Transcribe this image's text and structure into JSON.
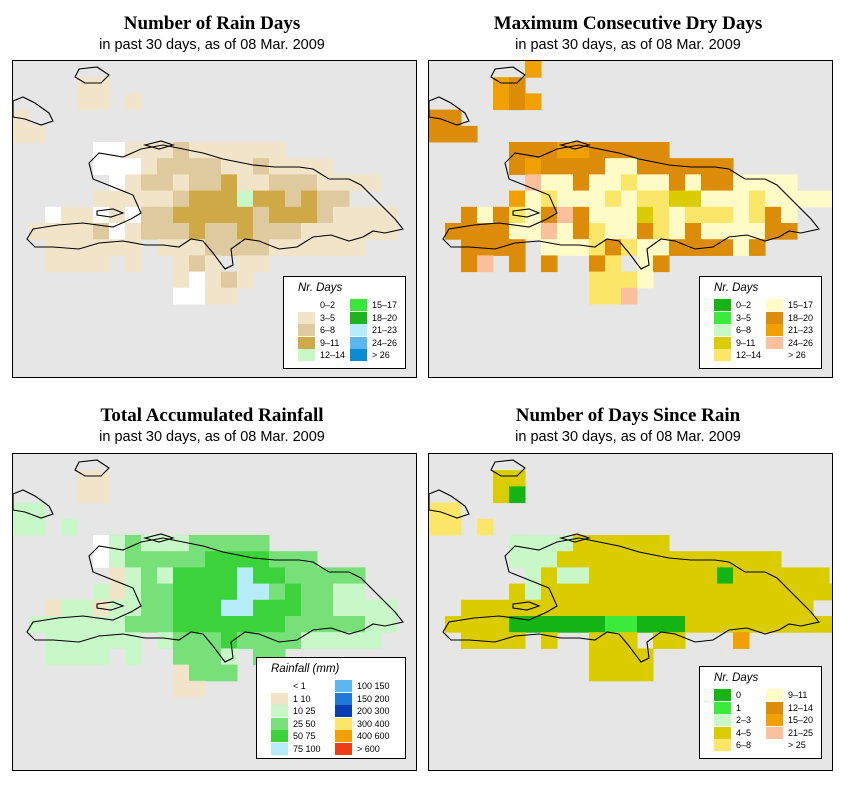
{
  "colors": {
    "background": "#e6e6e6",
    "coastline": "#000000"
  },
  "panels": [
    {
      "title": "Number of Rain Days",
      "subtitle": "in past 30 days, as of  08 Mar. 2009",
      "legend": {
        "title": "Nr. Days",
        "items": [
          {
            "label": "0–2",
            "color": "#ffffff"
          },
          {
            "label": "3–5",
            "color": "#f2e4c8"
          },
          {
            "label": "6–8",
            "color": "#deca9e"
          },
          {
            "label": "9–11",
            "color": "#cfa946"
          },
          {
            "label": "12–14",
            "color": "#c8f7c8"
          },
          {
            "label": "15–17",
            "color": "#38e838"
          },
          {
            "label": "18–20",
            "color": "#1fb41f"
          },
          {
            "label": "21–23",
            "color": "#b4ecf8"
          },
          {
            "label": "24–26",
            "color": "#5ab7f0"
          },
          {
            "label": "> 26",
            "color": "#0a8cd4"
          }
        ]
      }
    },
    {
      "title": "Maximum Consecutive Dry Days",
      "subtitle": "in past 30 days, as of  08 Mar. 2009",
      "legend": {
        "title": "Nr. Days",
        "items": [
          {
            "label": "0–2",
            "color": "#14b414"
          },
          {
            "label": "3–5",
            "color": "#3cea3c"
          },
          {
            "label": "6–8",
            "color": "#c8f7c8"
          },
          {
            "label": "9–11",
            "color": "#dbcc00"
          },
          {
            "label": "12–14",
            "color": "#fbe66a"
          },
          {
            "label": "15–17",
            "color": "#fffcc8"
          },
          {
            "label": "18–20",
            "color": "#dc8c08"
          },
          {
            "label": "21–23",
            "color": "#f0a000"
          },
          {
            "label": "24–26",
            "color": "#fcc09c"
          },
          {
            "label": "> 26",
            "color": "#ffffff"
          }
        ]
      }
    },
    {
      "title": "Total Accumulated Rainfall",
      "subtitle": "in past 30 days, as of  08 Mar. 2009",
      "legend": {
        "title": "Rainfall (mm)",
        "items": [
          {
            "label": "< 1",
            "color": "#ffffff"
          },
          {
            "label": "1    10",
            "color": "#f2e4c8"
          },
          {
            "label": "10    25",
            "color": "#c8f7c8"
          },
          {
            "label": "25    50",
            "color": "#78e078"
          },
          {
            "label": "50    75",
            "color": "#3cd23c"
          },
          {
            "label": "75  100",
            "color": "#b4ecf8"
          },
          {
            "label": "100  150",
            "color": "#5ab7f0"
          },
          {
            "label": "150  200",
            "color": "#1e78dc"
          },
          {
            "label": "200  300",
            "color": "#0a3cb4"
          },
          {
            "label": "300  400",
            "color": "#fbe66a"
          },
          {
            "label": "400  600",
            "color": "#f0a000"
          },
          {
            "label": "> 600",
            "color": "#f03c14"
          }
        ]
      }
    },
    {
      "title": "Number of Days Since Rain",
      "subtitle": "in past 30 days, as of  08 Mar. 2009",
      "legend": {
        "title": "Nr. Days",
        "items": [
          {
            "label": "0",
            "color": "#14b414"
          },
          {
            "label": "1",
            "color": "#3cea3c"
          },
          {
            "label": "2–3",
            "color": "#c8f7c8"
          },
          {
            "label": "4–5",
            "color": "#dbcc00"
          },
          {
            "label": "6–8",
            "color": "#fbe66a"
          },
          {
            "label": "9–11",
            "color": "#fffcc8"
          },
          {
            "label": "12–14",
            "color": "#dc8c08"
          },
          {
            "label": "15–20",
            "color": "#f0a000"
          },
          {
            "label": "21–25",
            "color": "#fcc09c"
          },
          {
            "label": "> 25",
            "color": "#ffffff"
          }
        ]
      }
    }
  ],
  "grids": {
    "rain_days": [
      "...........................",
      "....11.........................",
      "....11.1......................",
      "1.............................",
      "11...........................",
      ".....001112111111..........",
      ".....000122221121111.......",
      "......01221223112221111....",
      ".....1111123334332322.....",
      "..0110102233333233321111",
      ".11112012223223222111111",
      "..111111.1112222111111.",
      "..1111.1..121.11.......",
      "..........10121........",
      "..........0011........."
    ],
    "dry_days": [
      "......7..........................",
      "....76...........................",
      "....767..........................",
      "66...............................",
      "666..............................",
      ".....6667766666..................",
      ".....67666655666666......",
      "......85565545565665555.",
      ".....754555454433555455555",
      "..656456865553454445465",
      ".6666558564556456555566",
      "..6666.55546455666656.",
      "..68.6.6..64.56........",
      "..........4445.........",
      "..........448.........."
    ],
    "rainfall": [
      ".....................",
      "....11...............",
      "....11...............",
      "22...................",
      "22.2.................",
      ".....02322233333.........",
      ".....02333334444333......",
      "......1232444454433333...",
      ".....21233444455343322..",
      "..1221223344455444332222",
      ".22222233344444443333322",
      "..222222.23334333322222.",
      "..2222.2..3332.33.......",
      "..........1333..........",
      "..........11............"
    ],
    "since_rain": [
      "..............................",
      "....33........................",
      "....30........................",
      "44..............................",
      "44.4............................",
      ".....2222333333...............",
      ".....22233333333333333.....",
      "......2322333333330333333..",
      ".....32333333333333333333333",
      "..3333333333333333333333..",
      ".3333000000110003333333333",
      "..3333.3..333.33...7.......",
      "..........3333.........",
      "..........3333........."
    ]
  }
}
